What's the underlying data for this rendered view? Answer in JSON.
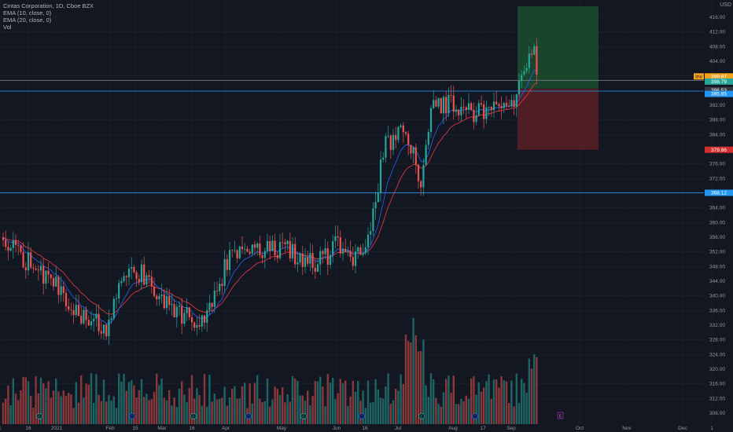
{
  "legend": {
    "symbol": "Cintas Corporation, 1D, Cboe BZX",
    "ema10": "EMA (10, close, 0)",
    "ema20": "EMA (20, close, 0)",
    "vol": "Vol"
  },
  "currency": "USD",
  "colors": {
    "background": "#131722",
    "grid": "#1e222d",
    "up": "#26a69a",
    "down": "#ef5350",
    "ema10": "#2962ff",
    "ema20": "#f23645",
    "profit_zone": "#1a4d2e",
    "loss_zone": "#5a1e24"
  },
  "chart_data": {
    "type": "candlestick",
    "y_axis": {
      "range": [
        305,
        419
      ],
      "ticks": [
        308,
        312,
        316,
        320,
        324,
        328,
        332,
        336,
        340,
        344,
        348,
        352,
        356,
        360,
        364,
        368,
        372,
        376,
        380,
        384,
        388,
        392,
        396,
        400,
        404,
        408,
        412,
        416
      ],
      "labels": [
        "308.00",
        "312.00",
        "316.00",
        "320.00",
        "324.00",
        "328.00",
        "332.00",
        "336.00",
        "340.00",
        "344.00",
        "348.00",
        "352.00",
        "356.00",
        "360.00",
        "364.00",
        "368.00",
        "372.00",
        "376.00",
        "380.00",
        "384.00",
        "388.00",
        "392.00",
        "396.00",
        "400.00",
        "404.00",
        "408.00",
        "412.00",
        "416.00"
      ]
    },
    "x_axis": {
      "labels": [
        "c",
        "16",
        "2021",
        "Feb",
        "15",
        "Mar",
        "16",
        "Apr",
        "May",
        "Jun",
        "16",
        "Jul",
        "Aug",
        "17",
        "Sep",
        "Oct",
        "Nov",
        "Dec",
        "1"
      ],
      "label_pos": [
        0,
        36,
        72,
        140,
        172,
        206,
        244,
        287,
        358,
        428,
        464,
        506,
        576,
        614,
        650,
        737,
        797,
        868,
        905
      ]
    },
    "horizontal_lines": [
      {
        "price": 368.12,
        "label": "368.12",
        "color": "#2196f3"
      },
      {
        "price": 395.85,
        "label": "395.85",
        "color": "#2196f3"
      },
      {
        "price": 398.79,
        "label": "398.79",
        "color": "#787b86"
      }
    ],
    "price_tags": [
      {
        "price": 399.87,
        "label": "399.87",
        "color": "#f7a21b",
        "prefix": "Inv"
      },
      {
        "price": 398.79,
        "label": "398.79",
        "color": "#26a69a"
      },
      {
        "price": 396.53,
        "label": "396.53",
        "color": "#363a45"
      },
      {
        "price": 395.85,
        "label": "395.85",
        "color": "#2196f3"
      },
      {
        "price": 379.86,
        "label": "379.86",
        "color": "#d32f2f"
      }
    ],
    "position": {
      "entry": 396.53,
      "target": 419,
      "stop": 379.86
    },
    "event_markers": [
      "E",
      "D",
      "E",
      "D",
      "E",
      "D",
      "E",
      "D"
    ],
    "future_marker": "E"
  }
}
